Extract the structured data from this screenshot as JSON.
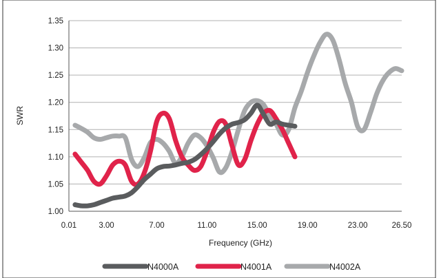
{
  "chart_data": {
    "type": "line",
    "title": "",
    "xlabel": "Frequency (GHz)",
    "ylabel": "SWR",
    "xlim": [
      0.01,
      26.5
    ],
    "ylim": [
      1.0,
      1.35
    ],
    "grid": true,
    "legend_position": "bottom",
    "x_tick_labels": [
      "0.01",
      "3.00",
      "7.00",
      "11.00",
      "15.00",
      "19.00",
      "23.00",
      "26.50"
    ],
    "x_tick_values": [
      0.01,
      3.0,
      7.0,
      11.0,
      15.0,
      19.0,
      23.0,
      26.5
    ],
    "y_tick_labels": [
      "1.00",
      "1.05",
      "1.10",
      "1.15",
      "1.20",
      "1.25",
      "1.30",
      "1.35"
    ],
    "y_tick_values": [
      1.0,
      1.05,
      1.1,
      1.15,
      1.2,
      1.25,
      1.3,
      1.35
    ],
    "series": [
      {
        "name": "N4000A",
        "color": "#5a5c5e",
        "x": [
          0.5,
          1.0,
          1.5,
          2.0,
          2.5,
          3.0,
          3.5,
          4.0,
          4.5,
          5.0,
          5.5,
          6.0,
          6.5,
          7.0,
          7.5,
          8.0,
          8.5,
          9.0,
          9.5,
          10.0,
          10.5,
          11.0,
          11.5,
          12.0,
          12.5,
          13.0,
          13.5,
          14.0,
          14.5,
          15.0,
          15.5,
          16.0,
          16.5,
          17.0,
          17.5,
          18.0
        ],
        "values": [
          1.012,
          1.01,
          1.01,
          1.012,
          1.016,
          1.02,
          1.024,
          1.026,
          1.028,
          1.034,
          1.045,
          1.058,
          1.068,
          1.078,
          1.082,
          1.083,
          1.085,
          1.088,
          1.09,
          1.095,
          1.104,
          1.115,
          1.128,
          1.142,
          1.153,
          1.16,
          1.163,
          1.168,
          1.18,
          1.195,
          1.178,
          1.16,
          1.164,
          1.16,
          1.158,
          1.156
        ]
      },
      {
        "name": "N4001A",
        "color": "#e0234a",
        "x": [
          0.5,
          1.0,
          1.5,
          2.0,
          2.5,
          3.0,
          3.5,
          4.0,
          4.5,
          5.0,
          5.5,
          6.0,
          6.5,
          7.0,
          7.5,
          8.0,
          8.5,
          9.0,
          9.5,
          10.0,
          10.5,
          11.0,
          11.5,
          12.0,
          12.5,
          13.0,
          13.5,
          14.0,
          14.5,
          15.0,
          15.5,
          16.0,
          16.5,
          17.0,
          17.5,
          18.0
        ],
        "values": [
          1.105,
          1.09,
          1.075,
          1.055,
          1.05,
          1.065,
          1.085,
          1.092,
          1.085,
          1.055,
          1.05,
          1.07,
          1.11,
          1.165,
          1.18,
          1.17,
          1.13,
          1.1,
          1.085,
          1.075,
          1.082,
          1.11,
          1.145,
          1.165,
          1.16,
          1.12,
          1.085,
          1.095,
          1.13,
          1.16,
          1.18,
          1.185,
          1.17,
          1.15,
          1.125,
          1.1
        ]
      },
      {
        "name": "N4002A",
        "color": "#a7a9ab",
        "x": [
          0.5,
          1.0,
          1.5,
          2.0,
          2.5,
          3.0,
          3.5,
          4.0,
          4.5,
          5.0,
          5.5,
          6.0,
          6.5,
          7.0,
          7.5,
          8.0,
          8.5,
          9.0,
          9.5,
          10.0,
          10.5,
          11.0,
          11.5,
          12.0,
          12.5,
          13.0,
          13.5,
          14.0,
          14.5,
          15.0,
          15.5,
          16.0,
          16.5,
          17.0,
          17.5,
          18.0,
          18.5,
          19.0,
          19.5,
          20.0,
          20.5,
          21.0,
          21.5,
          22.0,
          22.5,
          23.0,
          23.5,
          24.0,
          24.5,
          25.0,
          25.5,
          26.0,
          26.5
        ],
        "values": [
          1.158,
          1.152,
          1.145,
          1.135,
          1.132,
          1.135,
          1.138,
          1.138,
          1.135,
          1.095,
          1.082,
          1.098,
          1.126,
          1.132,
          1.125,
          1.11,
          1.088,
          1.1,
          1.125,
          1.14,
          1.135,
          1.12,
          1.098,
          1.072,
          1.08,
          1.11,
          1.15,
          1.185,
          1.2,
          1.203,
          1.196,
          1.175,
          1.16,
          1.14,
          1.15,
          1.19,
          1.22,
          1.255,
          1.285,
          1.31,
          1.325,
          1.315,
          1.28,
          1.235,
          1.2,
          1.155,
          1.15,
          1.18,
          1.215,
          1.24,
          1.255,
          1.262,
          1.258
        ]
      }
    ]
  }
}
